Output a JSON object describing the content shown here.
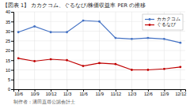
{
  "chart_data": {
    "type": "line",
    "title": "【図表 1】 カカクコム、ぐるなび/株価収益率 PER の推移",
    "footnote": "制作者：溝田直尋公認会計士",
    "categories": [
      "10/6",
      "10/9",
      "10/12",
      "11/3",
      "11/6",
      "11/9",
      "11/12",
      "12/3",
      "12/6",
      "12/9",
      "12/12"
    ],
    "series": [
      {
        "name": "カカクコム",
        "color": "#4472c4",
        "values": [
          29.5,
          32.5,
          29.5,
          29.5,
          35.5,
          35.0,
          26.5,
          26.0,
          26.5,
          26.0,
          24.0
        ]
      },
      {
        "name": "ぐるなび",
        "color": "#c00000",
        "values": [
          16.0,
          14.5,
          15.5,
          15.0,
          12.0,
          13.5,
          13.0,
          10.0,
          10.0,
          10.5,
          11.5
        ]
      }
    ],
    "ylim": [
      0,
      40
    ],
    "yticks": [
      0,
      5,
      10,
      15,
      20,
      25,
      30,
      35,
      40
    ],
    "grid": true,
    "legend": "upper right",
    "marker": "circle"
  }
}
